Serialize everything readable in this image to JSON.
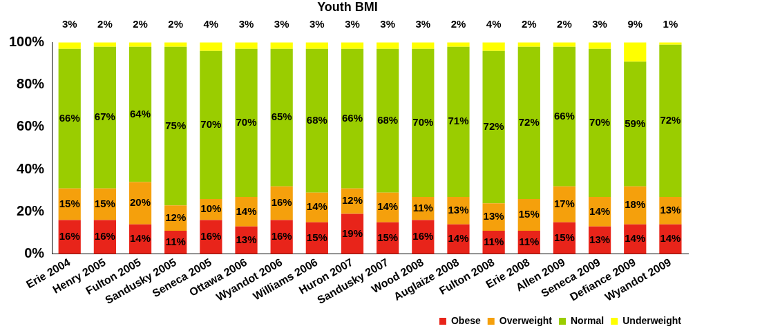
{
  "chart_data": {
    "type": "bar",
    "title": "Youth BMI",
    "stacked": true,
    "legend": "bottom right",
    "grid": false,
    "categories": [
      "Erie 2004",
      "Henry 2005",
      "Fulton 2005",
      "Sandusky 2005",
      "Seneca 2005",
      "Ottawa 2006",
      "Wyandot 2006",
      "Williams 2006",
      "Huron 2007",
      "Sandusky 2007",
      "Wood 2008",
      "Auglaize 2008",
      "Fulton 2008",
      "Erie 2008",
      "Allen 2009",
      "Seneca 2009",
      "Defiance 2009",
      "Wyandot 2009"
    ],
    "ylim": [
      0,
      100
    ],
    "yticks": [
      {
        "value": 0,
        "label": "0%"
      },
      {
        "value": 20,
        "label": "20%"
      },
      {
        "value": 40,
        "label": "40%"
      },
      {
        "value": 60,
        "label": "60%"
      },
      {
        "value": 80,
        "label": "80%"
      },
      {
        "value": 100,
        "label": "100%"
      }
    ],
    "series": [
      {
        "name": "Obese",
        "color": "#e8241a",
        "values": [
          16,
          16,
          14,
          11,
          16,
          13,
          16,
          15,
          19,
          15,
          16,
          14,
          11,
          11,
          15,
          13,
          14,
          14
        ],
        "value_labels": [
          "16%",
          "16%",
          "14%",
          "11%",
          "16%",
          "13%",
          "16%",
          "15%",
          "19%",
          "15%",
          "16%",
          "14%",
          "11%",
          "11%",
          "15%",
          "13%",
          "14%",
          "14%"
        ]
      },
      {
        "name": "Overweight",
        "color": "#f5a00c",
        "values": [
          15,
          15,
          20,
          12,
          10,
          14,
          16,
          14,
          12,
          14,
          11,
          13,
          13,
          15,
          17,
          14,
          18,
          13
        ],
        "value_labels": [
          "15%",
          "15%",
          "20%",
          "12%",
          "10%",
          "14%",
          "16%",
          "14%",
          "12%",
          "14%",
          "11%",
          "13%",
          "13%",
          "15%",
          "17%",
          "14%",
          "18%",
          "13%"
        ]
      },
      {
        "name": "Normal",
        "color": "#9acd00",
        "values": [
          66,
          67,
          64,
          75,
          70,
          70,
          65,
          68,
          66,
          68,
          70,
          71,
          72,
          72,
          66,
          70,
          59,
          72
        ],
        "value_labels": [
          "66%",
          "67%",
          "64%",
          "75%",
          "70%",
          "70%",
          "65%",
          "68%",
          "66%",
          "68%",
          "70%",
          "71%",
          "72%",
          "72%",
          "66%",
          "70%",
          "59%",
          "72%"
        ]
      },
      {
        "name": "Underweight",
        "color": "#ffff00",
        "values": [
          3,
          2,
          2,
          2,
          4,
          3,
          3,
          3,
          3,
          3,
          3,
          2,
          4,
          2,
          2,
          3,
          9,
          1
        ],
        "value_labels": [
          "3%",
          "2%",
          "2%",
          "2%",
          "4%",
          "3%",
          "3%",
          "3%",
          "3%",
          "3%",
          "3%",
          "2%",
          "4%",
          "2%",
          "2%",
          "3%",
          "9%",
          "1%"
        ]
      }
    ]
  }
}
